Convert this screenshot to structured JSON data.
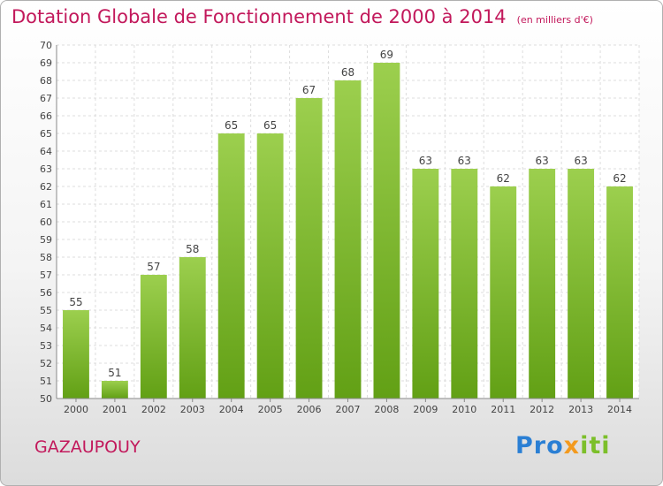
{
  "chart_data": {
    "type": "bar",
    "title": "Dotation Globale de Fonctionnement de 2000 à 2014",
    "subtitle": "(en milliers d'€)",
    "categories": [
      "2000",
      "2001",
      "2002",
      "2003",
      "2004",
      "2005",
      "2006",
      "2007",
      "2008",
      "2009",
      "2010",
      "2011",
      "2012",
      "2013",
      "2014"
    ],
    "values": [
      55,
      51,
      57,
      58,
      65,
      65,
      67,
      68,
      69,
      63,
      63,
      62,
      63,
      63,
      62
    ],
    "ylim": [
      50,
      70
    ],
    "yticks": [
      50,
      51,
      52,
      53,
      54,
      55,
      56,
      57,
      58,
      59,
      60,
      61,
      62,
      63,
      64,
      65,
      66,
      67,
      68,
      69,
      70
    ],
    "xlabel": "",
    "ylabel": "",
    "grid": true,
    "bar_color_top": "#9ccf4e",
    "bar_color_bottom": "#62a015"
  },
  "commune": "GAZAUPOUY",
  "logo": {
    "parts": [
      "Pro",
      "x",
      "iti"
    ],
    "colors": [
      "#2a7fd4",
      "#f39a1e",
      "#7cbf2a"
    ]
  }
}
